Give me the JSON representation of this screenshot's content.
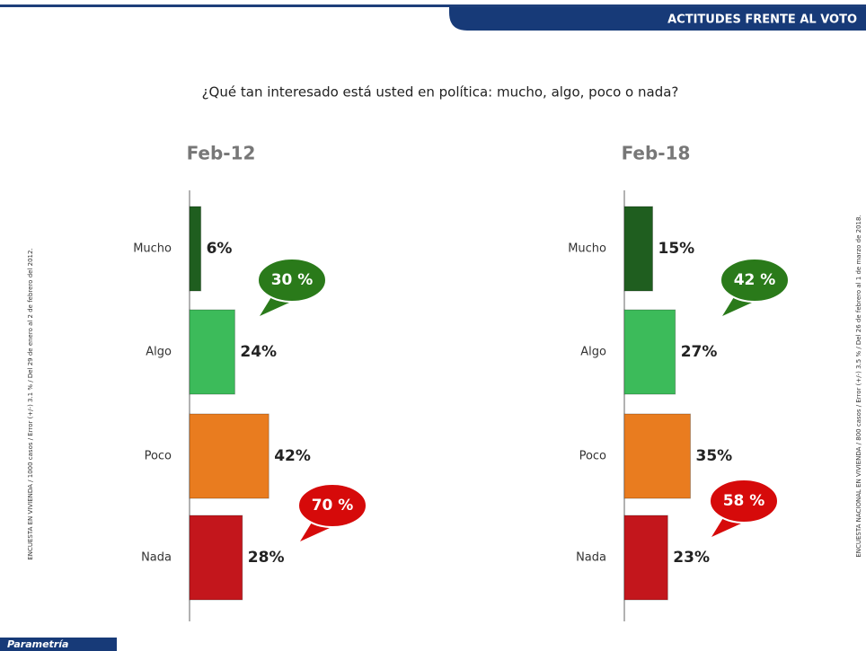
{
  "header": "ACTITUDES FRENTE AL VOTO",
  "question": "¿Qué tan interesado está usted en política: mucho, algo, poco o nada?",
  "notes": [
    "ENCUESTA EN VIVIENDA / 1000 casos / Error (+/-) 3.1 % / Del 29 de enero al 2 de febrero del 2012.",
    "ENCUESTA NACIONAL EN VIVIENDA / 800 casos / Error (+/-) 3.5 % / Del 26 de febrero al 1 de marzo de 2018."
  ],
  "footer": "Parametría",
  "chart_data": [
    {
      "type": "bar",
      "title": "Feb-12",
      "categories": [
        "Mucho",
        "Algo",
        "Poco",
        "Nada"
      ],
      "values": [
        6,
        24,
        42,
        28
      ],
      "value_labels": [
        "6%",
        "24%",
        "42%",
        "28%"
      ],
      "colors": [
        "#1f5e1f",
        "#3cbb5a",
        "#e97c1f",
        "#c3161c"
      ],
      "xlim": [
        0,
        100
      ],
      "annotations": [
        {
          "value": 30,
          "label": "30 %",
          "color": "#2a7a1a"
        },
        {
          "value": 70,
          "label": "70 %",
          "color": "#d60a0a"
        }
      ]
    },
    {
      "type": "bar",
      "title": "Feb-18",
      "categories": [
        "Mucho",
        "Algo",
        "Poco",
        "Nada"
      ],
      "values": [
        15,
        27,
        35,
        23
      ],
      "value_labels": [
        "15%",
        "27%",
        "35%",
        "23%"
      ],
      "colors": [
        "#1f5e1f",
        "#3cbb5a",
        "#e97c1f",
        "#c3161c"
      ],
      "xlim": [
        0,
        100
      ],
      "annotations": [
        {
          "value": 42,
          "label": "42 %",
          "color": "#2a7a1a"
        },
        {
          "value": 58,
          "label": "58 %",
          "color": "#d60a0a"
        }
      ]
    }
  ]
}
